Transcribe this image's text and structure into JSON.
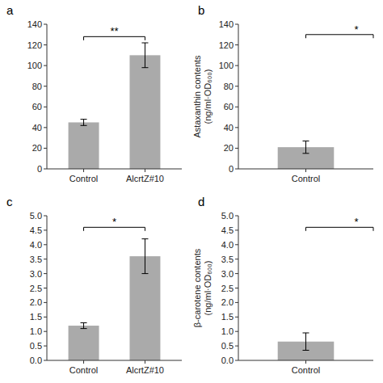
{
  "chart_data": [
    {
      "type": "bar",
      "title": "a",
      "categories": [
        "Control",
        "AlcrtZ#10"
      ],
      "values": [
        45,
        110
      ],
      "errors": [
        3,
        12
      ],
      "color": "#aaaaaa",
      "ylim": [
        0,
        140
      ],
      "yticks": [
        0,
        20,
        40,
        60,
        80,
        100,
        120,
        140
      ],
      "grid": false,
      "annotations": [
        {
          "text": "**",
          "y": 128
        }
      ]
    },
    {
      "type": "bar",
      "title": "b",
      "categories": [
        "Control"
      ],
      "values": [
        21
      ],
      "errors": [
        6
      ],
      "color": "#aaaaaa",
      "ylabel": "Astaxanthin contents\n(ng/ml·OD₆₀₀)",
      "ylim": [
        0,
        140
      ],
      "yticks": [
        0,
        20,
        40,
        60,
        80,
        100,
        120,
        140
      ],
      "grid": false,
      "annotations": [
        {
          "text": "*",
          "y": 130
        }
      ]
    },
    {
      "type": "bar",
      "title": "c",
      "categories": [
        "Control",
        "AlcrtZ#10"
      ],
      "values": [
        1.2,
        3.6
      ],
      "errors": [
        0.1,
        0.6
      ],
      "color": "#aaaaaa",
      "ylim": [
        0,
        5
      ],
      "yticks": [
        {
          "value": 0,
          "label": "0.0"
        },
        0.5,
        {
          "value": 1.0,
          "label": "1.0"
        },
        1.5,
        {
          "value": 2.0,
          "label": "2.0"
        },
        2.5,
        {
          "value": 3.0,
          "label": "3.0"
        },
        3.5,
        {
          "value": 4.0,
          "label": "4.0"
        },
        4.5,
        {
          "value": 5.0,
          "label": "5.0"
        }
      ],
      "grid": false,
      "annotations": [
        {
          "text": "*",
          "y": 4.6
        }
      ]
    },
    {
      "type": "bar",
      "title": "d",
      "categories": [
        "Control"
      ],
      "values": [
        0.65
      ],
      "errors": [
        0.3
      ],
      "color": "#aaaaaa",
      "ylabel": "β-carotene contents\n(ng/ml·OD₆₀₀)",
      "ylim": [
        0,
        5
      ],
      "yticks": [
        {
          "value": 0,
          "label": "0.0"
        },
        0.5,
        {
          "value": 1.0,
          "label": "1.0"
        },
        1.5,
        {
          "value": 2.0,
          "label": "2.0"
        },
        2.5,
        {
          "value": 3.0,
          "label": "3.0"
        },
        3.5,
        {
          "value": 4.0,
          "label": "4.0"
        },
        4.5,
        {
          "value": 5.0,
          "label": "5.0"
        }
      ],
      "grid": false,
      "annotations": [
        {
          "text": "*",
          "y": 4.6
        }
      ]
    }
  ]
}
